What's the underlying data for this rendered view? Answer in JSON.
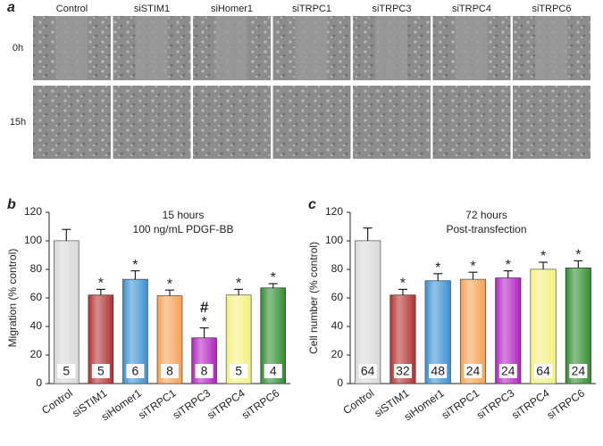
{
  "panel_a": {
    "label": "a",
    "columns": [
      "Control",
      "siSTIM1",
      "siHomer1",
      "siTRPC1",
      "siTRPC3",
      "siTRPC4",
      "siTRPC6"
    ],
    "rows": [
      "0h",
      "15h"
    ]
  },
  "chart_data": [
    {
      "type": "bar",
      "panel_label": "b",
      "title": "15 hours",
      "subtitle": "100 ng/mL PDGF-BB",
      "y_label": "Migration (% control)",
      "categories": [
        "Control",
        "siSTIM1",
        "siHomer1",
        "siTRPC1",
        "siTRPC3",
        "siTRPC4",
        "siTRPC6"
      ],
      "values": [
        100,
        62,
        73,
        61.5,
        32,
        62,
        67
      ],
      "errors": [
        8,
        4,
        6,
        4,
        7,
        4,
        3
      ],
      "n": [
        5,
        5,
        6,
        8,
        8,
        5,
        4
      ],
      "significance": [
        null,
        "*",
        "*",
        "*",
        "*",
        "*",
        "*"
      ],
      "hash": [
        null,
        null,
        null,
        null,
        "#",
        null,
        null
      ],
      "colors": [
        "#d8d8d8",
        "#b03030",
        "#3a8fd0",
        "#f4a050",
        "#b020c0",
        "#f2f080",
        "#2e8b2e"
      ],
      "ylim": [
        0,
        120
      ],
      "yticks": [
        0,
        20,
        40,
        60,
        80,
        100,
        120
      ]
    },
    {
      "type": "bar",
      "panel_label": "c",
      "title": "72 hours",
      "subtitle": "Post-transfection",
      "y_label": "Cell number (% control)",
      "categories": [
        "Control",
        "siSTIM1",
        "siHomer1",
        "siTRPC1",
        "siTRPC3",
        "siTRPC4",
        "siTRPC6"
      ],
      "values": [
        100,
        62,
        72,
        73,
        74,
        80,
        81
      ],
      "errors": [
        9,
        4,
        5,
        5,
        5,
        5,
        5
      ],
      "n": [
        64,
        32,
        48,
        24,
        24,
        64,
        24
      ],
      "significance": [
        null,
        "*",
        "*",
        "*",
        "*",
        "*",
        "*"
      ],
      "colors": [
        "#d8d8d8",
        "#b03030",
        "#3a8fd0",
        "#f4a050",
        "#b020c0",
        "#f2f080",
        "#2e8b2e"
      ],
      "ylim": [
        0,
        120
      ],
      "yticks": [
        0,
        20,
        40,
        60,
        80,
        100,
        120
      ]
    }
  ]
}
